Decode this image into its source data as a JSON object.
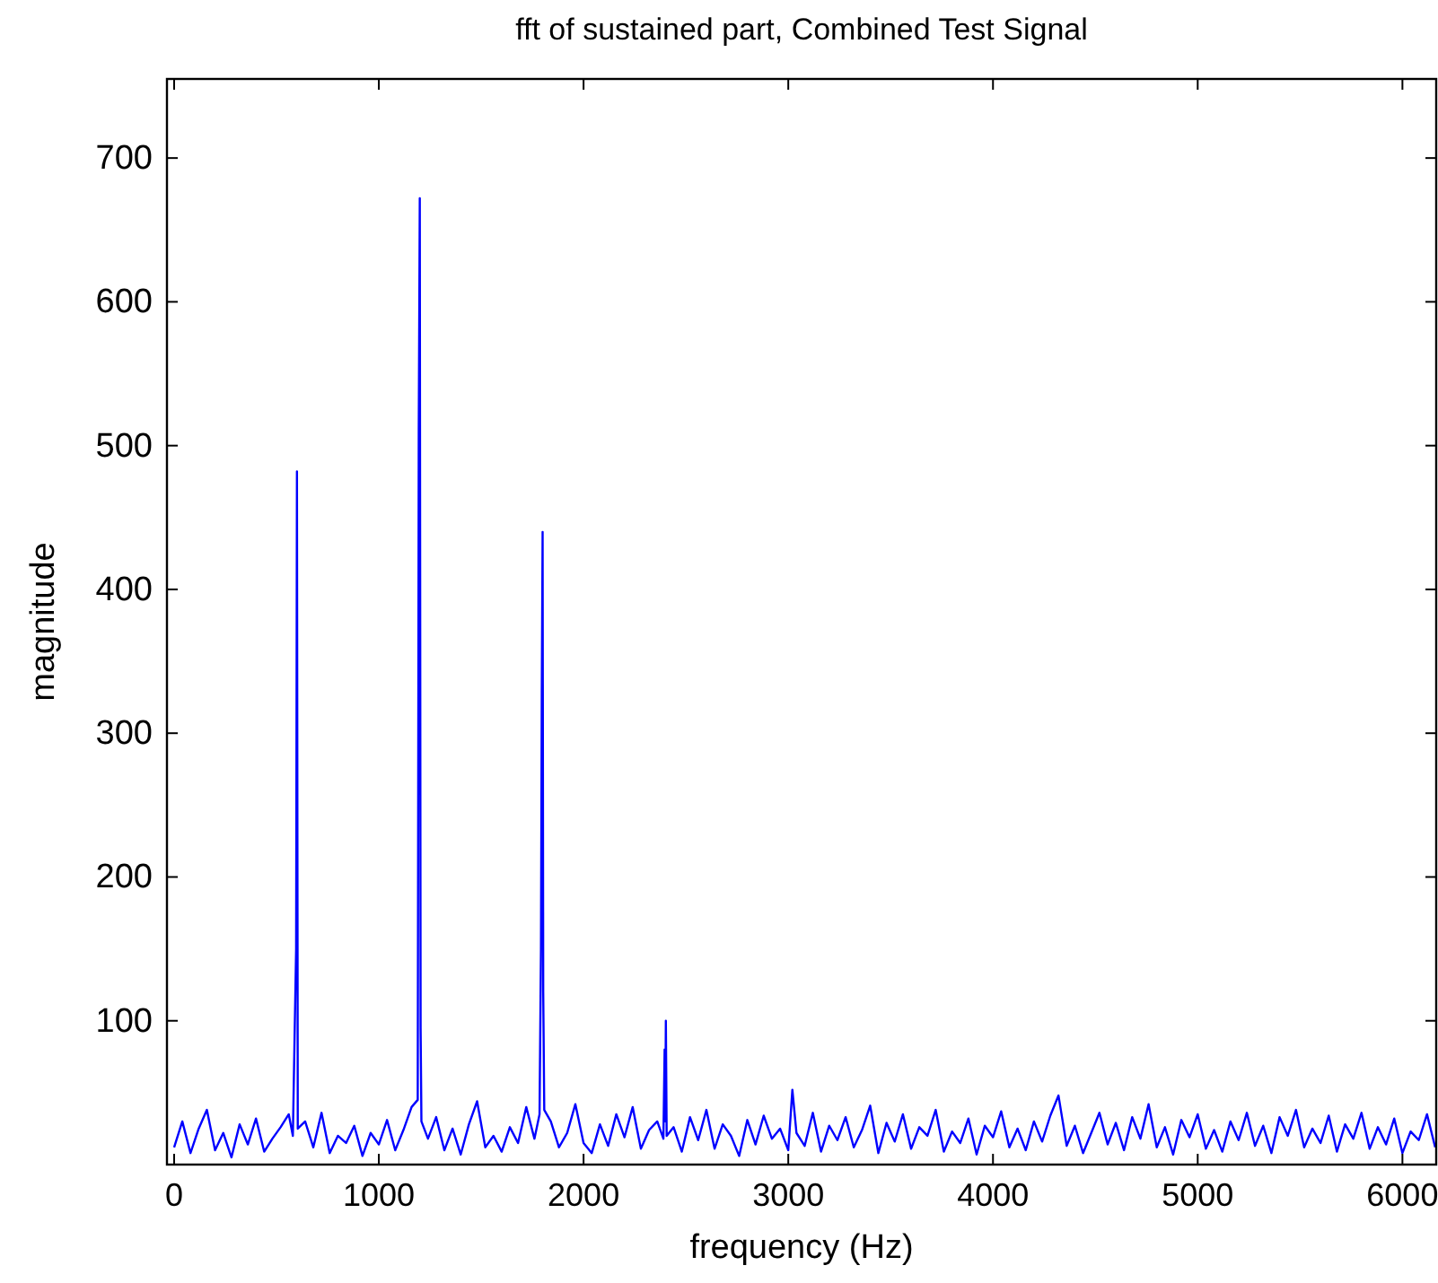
{
  "chart_data": {
    "type": "line",
    "title": "fft of sustained part, Combined Test Signal",
    "xlabel": "frequency (Hz)",
    "ylabel": "magnitude",
    "xlim": [
      -35,
      6165
    ],
    "ylim": [
      0,
      755
    ],
    "xticks": [
      0,
      1000,
      2000,
      3000,
      4000,
      5000,
      6000
    ],
    "yticks": [
      100,
      200,
      300,
      400,
      500,
      600,
      700
    ],
    "grid": false,
    "series": [
      {
        "color": "#0000ff",
        "x": [
          0,
          40,
          80,
          120,
          160,
          200,
          240,
          280,
          320,
          360,
          400,
          440,
          480,
          520,
          560,
          580,
          596,
          600,
          604,
          640,
          680,
          720,
          760,
          800,
          840,
          880,
          920,
          960,
          1000,
          1040,
          1080,
          1120,
          1160,
          1190,
          1195,
          1200,
          1204,
          1208,
          1240,
          1280,
          1320,
          1360,
          1400,
          1440,
          1480,
          1520,
          1560,
          1600,
          1640,
          1680,
          1720,
          1760,
          1785,
          1792,
          1796,
          1800,
          1803,
          1808,
          1840,
          1880,
          1920,
          1960,
          2000,
          2040,
          2080,
          2120,
          2160,
          2200,
          2240,
          2280,
          2320,
          2360,
          2390,
          2396,
          2399,
          2402,
          2406,
          2440,
          2480,
          2520,
          2560,
          2600,
          2640,
          2680,
          2720,
          2760,
          2800,
          2840,
          2880,
          2920,
          2960,
          3000,
          3020,
          3040,
          3080,
          3120,
          3160,
          3200,
          3240,
          3280,
          3320,
          3360,
          3400,
          3440,
          3480,
          3520,
          3560,
          3600,
          3640,
          3680,
          3720,
          3760,
          3800,
          3840,
          3880,
          3920,
          3960,
          4000,
          4040,
          4080,
          4120,
          4160,
          4200,
          4240,
          4280,
          4320,
          4360,
          4400,
          4440,
          4480,
          4520,
          4560,
          4600,
          4640,
          4680,
          4720,
          4760,
          4800,
          4840,
          4880,
          4920,
          4960,
          5000,
          5040,
          5080,
          5120,
          5160,
          5200,
          5240,
          5280,
          5320,
          5360,
          5400,
          5440,
          5480,
          5520,
          5560,
          5600,
          5640,
          5680,
          5720,
          5760,
          5800,
          5840,
          5880,
          5920,
          5960,
          6000,
          6040,
          6080,
          6120,
          6160
        ],
        "values": [
          12,
          30,
          8,
          25,
          38,
          10,
          22,
          5,
          28,
          14,
          32,
          9,
          18,
          26,
          35,
          20,
          150,
          482,
          25,
          30,
          12,
          36,
          8,
          20,
          15,
          27,
          6,
          22,
          14,
          31,
          10,
          24,
          40,
          45,
          510,
          672,
          95,
          30,
          18,
          33,
          10,
          25,
          7,
          28,
          44,
          12,
          20,
          9,
          26,
          15,
          40,
          18,
          35,
          150,
          330,
          440,
          120,
          38,
          30,
          12,
          22,
          42,
          15,
          8,
          28,
          13,
          35,
          19,
          40,
          11,
          24,
          30,
          18,
          80,
          30,
          100,
          20,
          26,
          9,
          33,
          17,
          38,
          11,
          28,
          20,
          6,
          31,
          14,
          34,
          18,
          25,
          10,
          52,
          22,
          13,
          36,
          9,
          27,
          17,
          33,
          12,
          24,
          41,
          8,
          29,
          16,
          35,
          11,
          26,
          20,
          38,
          9,
          23,
          15,
          32,
          7,
          27,
          19,
          37,
          12,
          25,
          10,
          30,
          16,
          34,
          48,
          13,
          27,
          8,
          22,
          36,
          14,
          29,
          10,
          33,
          18,
          42,
          12,
          26,
          7,
          31,
          19,
          35,
          11,
          24,
          9,
          30,
          17,
          36,
          13,
          27,
          8,
          33,
          20,
          38,
          12,
          25,
          15,
          34,
          9,
          28,
          18,
          36,
          11,
          26,
          14,
          32,
          8,
          23,
          17,
          35,
          12
        ]
      }
    ]
  }
}
